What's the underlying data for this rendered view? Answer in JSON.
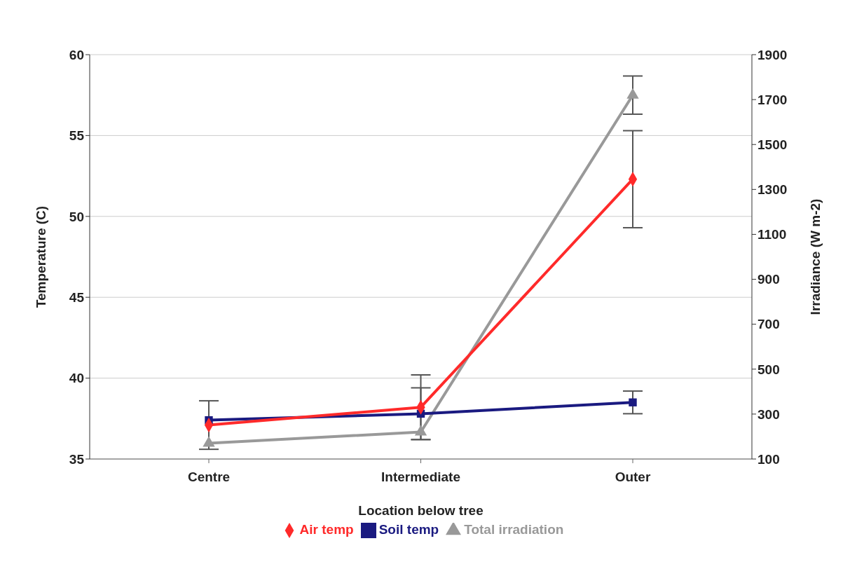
{
  "chart_data": {
    "type": "line",
    "xlabel": "Location below tree",
    "ylabel": "Temperature (C)",
    "y2label": "Irradiance (W m-2)",
    "categories": [
      "Centre",
      "Intermediate",
      "Outer"
    ],
    "series": [
      {
        "name": "Air temp",
        "color": "#ff2a2a",
        "marker": "diamond",
        "values": [
          37.1,
          38.2,
          52.3
        ],
        "errors": [
          1.5,
          2.0,
          3.0
        ]
      },
      {
        "name": "Soil temp",
        "color": "#1a1a80",
        "marker": "square",
        "values": [
          37.4,
          37.8,
          38.5
        ],
        "errors": [
          null,
          1.6,
          0.7
        ]
      },
      {
        "name": "Total irradiation",
        "color": "#999999",
        "marker": "triangle",
        "axis": "y2",
        "values": [
          170,
          220,
          1720
        ],
        "errors": [
          null,
          null,
          85
        ]
      }
    ],
    "ylim": [
      35,
      60
    ],
    "yticks": [
      35,
      40,
      45,
      50,
      55,
      60
    ],
    "y2lim": [
      100,
      1900
    ],
    "y2ticks": [
      100,
      300,
      500,
      700,
      900,
      1100,
      1300,
      1500,
      1700,
      1900
    ],
    "grid": "y",
    "legend": "bottom",
    "line_style": "solid"
  }
}
